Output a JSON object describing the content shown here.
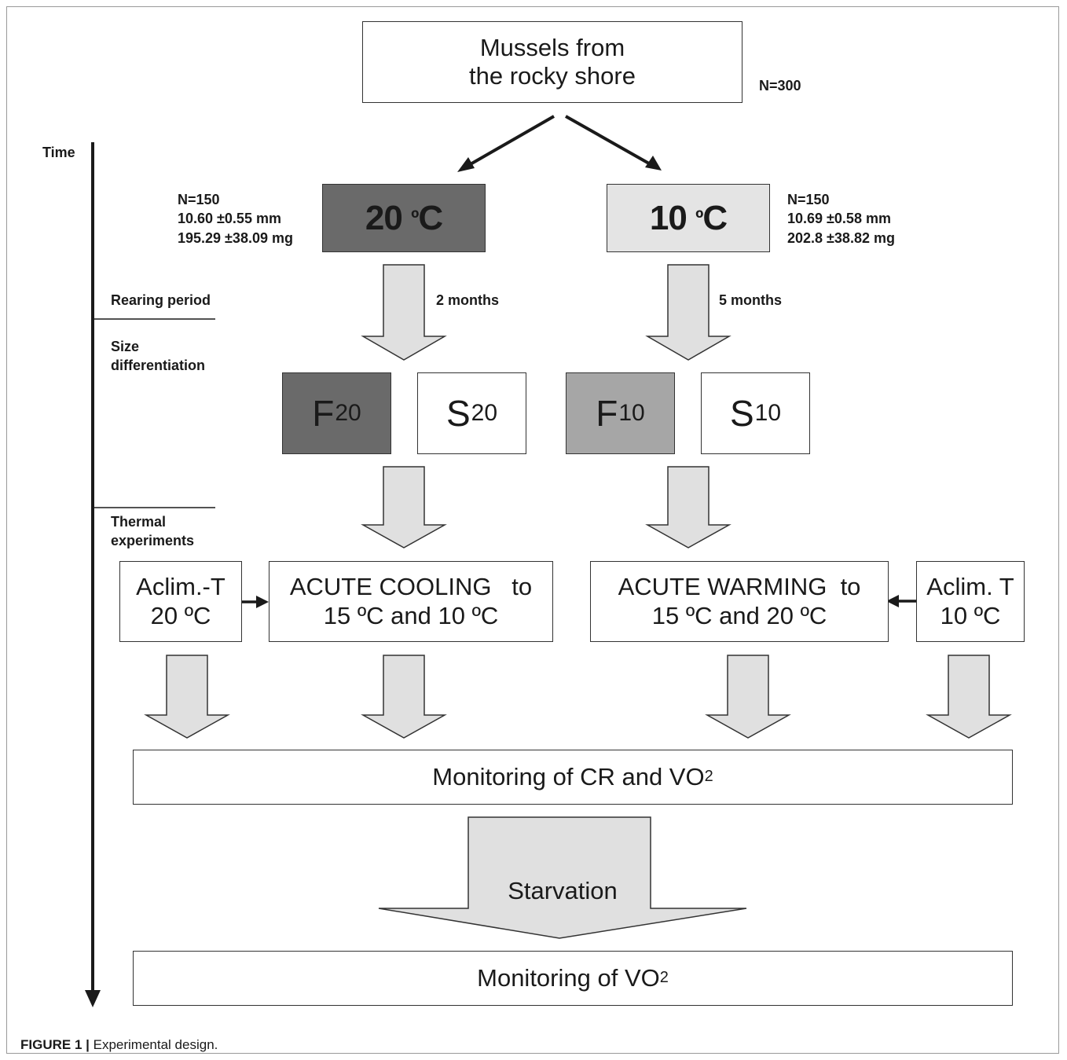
{
  "header": {
    "title_line1": "Mussels from",
    "title_line2": "the rocky shore",
    "n_total": "N=300"
  },
  "timeline": {
    "time_label": "Time",
    "rearing_label": "Rearing period",
    "size_label_1": "Size",
    "size_label_2": "differentiation",
    "thermal_label_1": "Thermal",
    "thermal_label_2": "experiments"
  },
  "groups": {
    "warm": {
      "temp_value": "20",
      "temp_unit_deg": "º",
      "temp_unit": "C",
      "n": "N=150",
      "length": "10.60 ±0.55 mm",
      "weight": "195.29 ±38.09 mg",
      "duration": "2 months",
      "fast": {
        "letter": "F",
        "sub": "20"
      },
      "slow": {
        "letter": "S",
        "sub": "20"
      },
      "aclim_line1": "Aclim.-T",
      "aclim_line2": "20 ºC",
      "acute_line1": "ACUTE COOLING   to",
      "acute_line2": "15 ºC and 10 ºC"
    },
    "cold": {
      "temp_value": "10",
      "temp_unit_deg": "º",
      "temp_unit": "C",
      "n": "N=150",
      "length": "10.69 ±0.58  mm",
      "weight": "202.8 ±38.82  mg",
      "duration": "5 months",
      "fast": {
        "letter": "F",
        "sub": "10"
      },
      "slow": {
        "letter": "S",
        "sub": "10"
      },
      "aclim_line1": "Aclim. T",
      "aclim_line2": "10 ºC",
      "acute_line1": "ACUTE WARMING  to",
      "acute_line2": "15 ºC and 20 ºC"
    }
  },
  "monitoring": {
    "cr_vo2_text": "Monitoring of CR and VO",
    "cr_vo2_sub": "2",
    "starvation": "Starvation",
    "vo2_text": "Monitoring of VO",
    "vo2_sub": "2"
  },
  "caption": {
    "label": "FIGURE 1 |",
    "text": " Experimental design."
  },
  "colors": {
    "dark_box": "#6a6a6a",
    "mid_box": "#a6a6a6",
    "light_box": "#e4e4e4",
    "arrow_fill": "#e0e0e0",
    "line": "#1a1a1a"
  }
}
